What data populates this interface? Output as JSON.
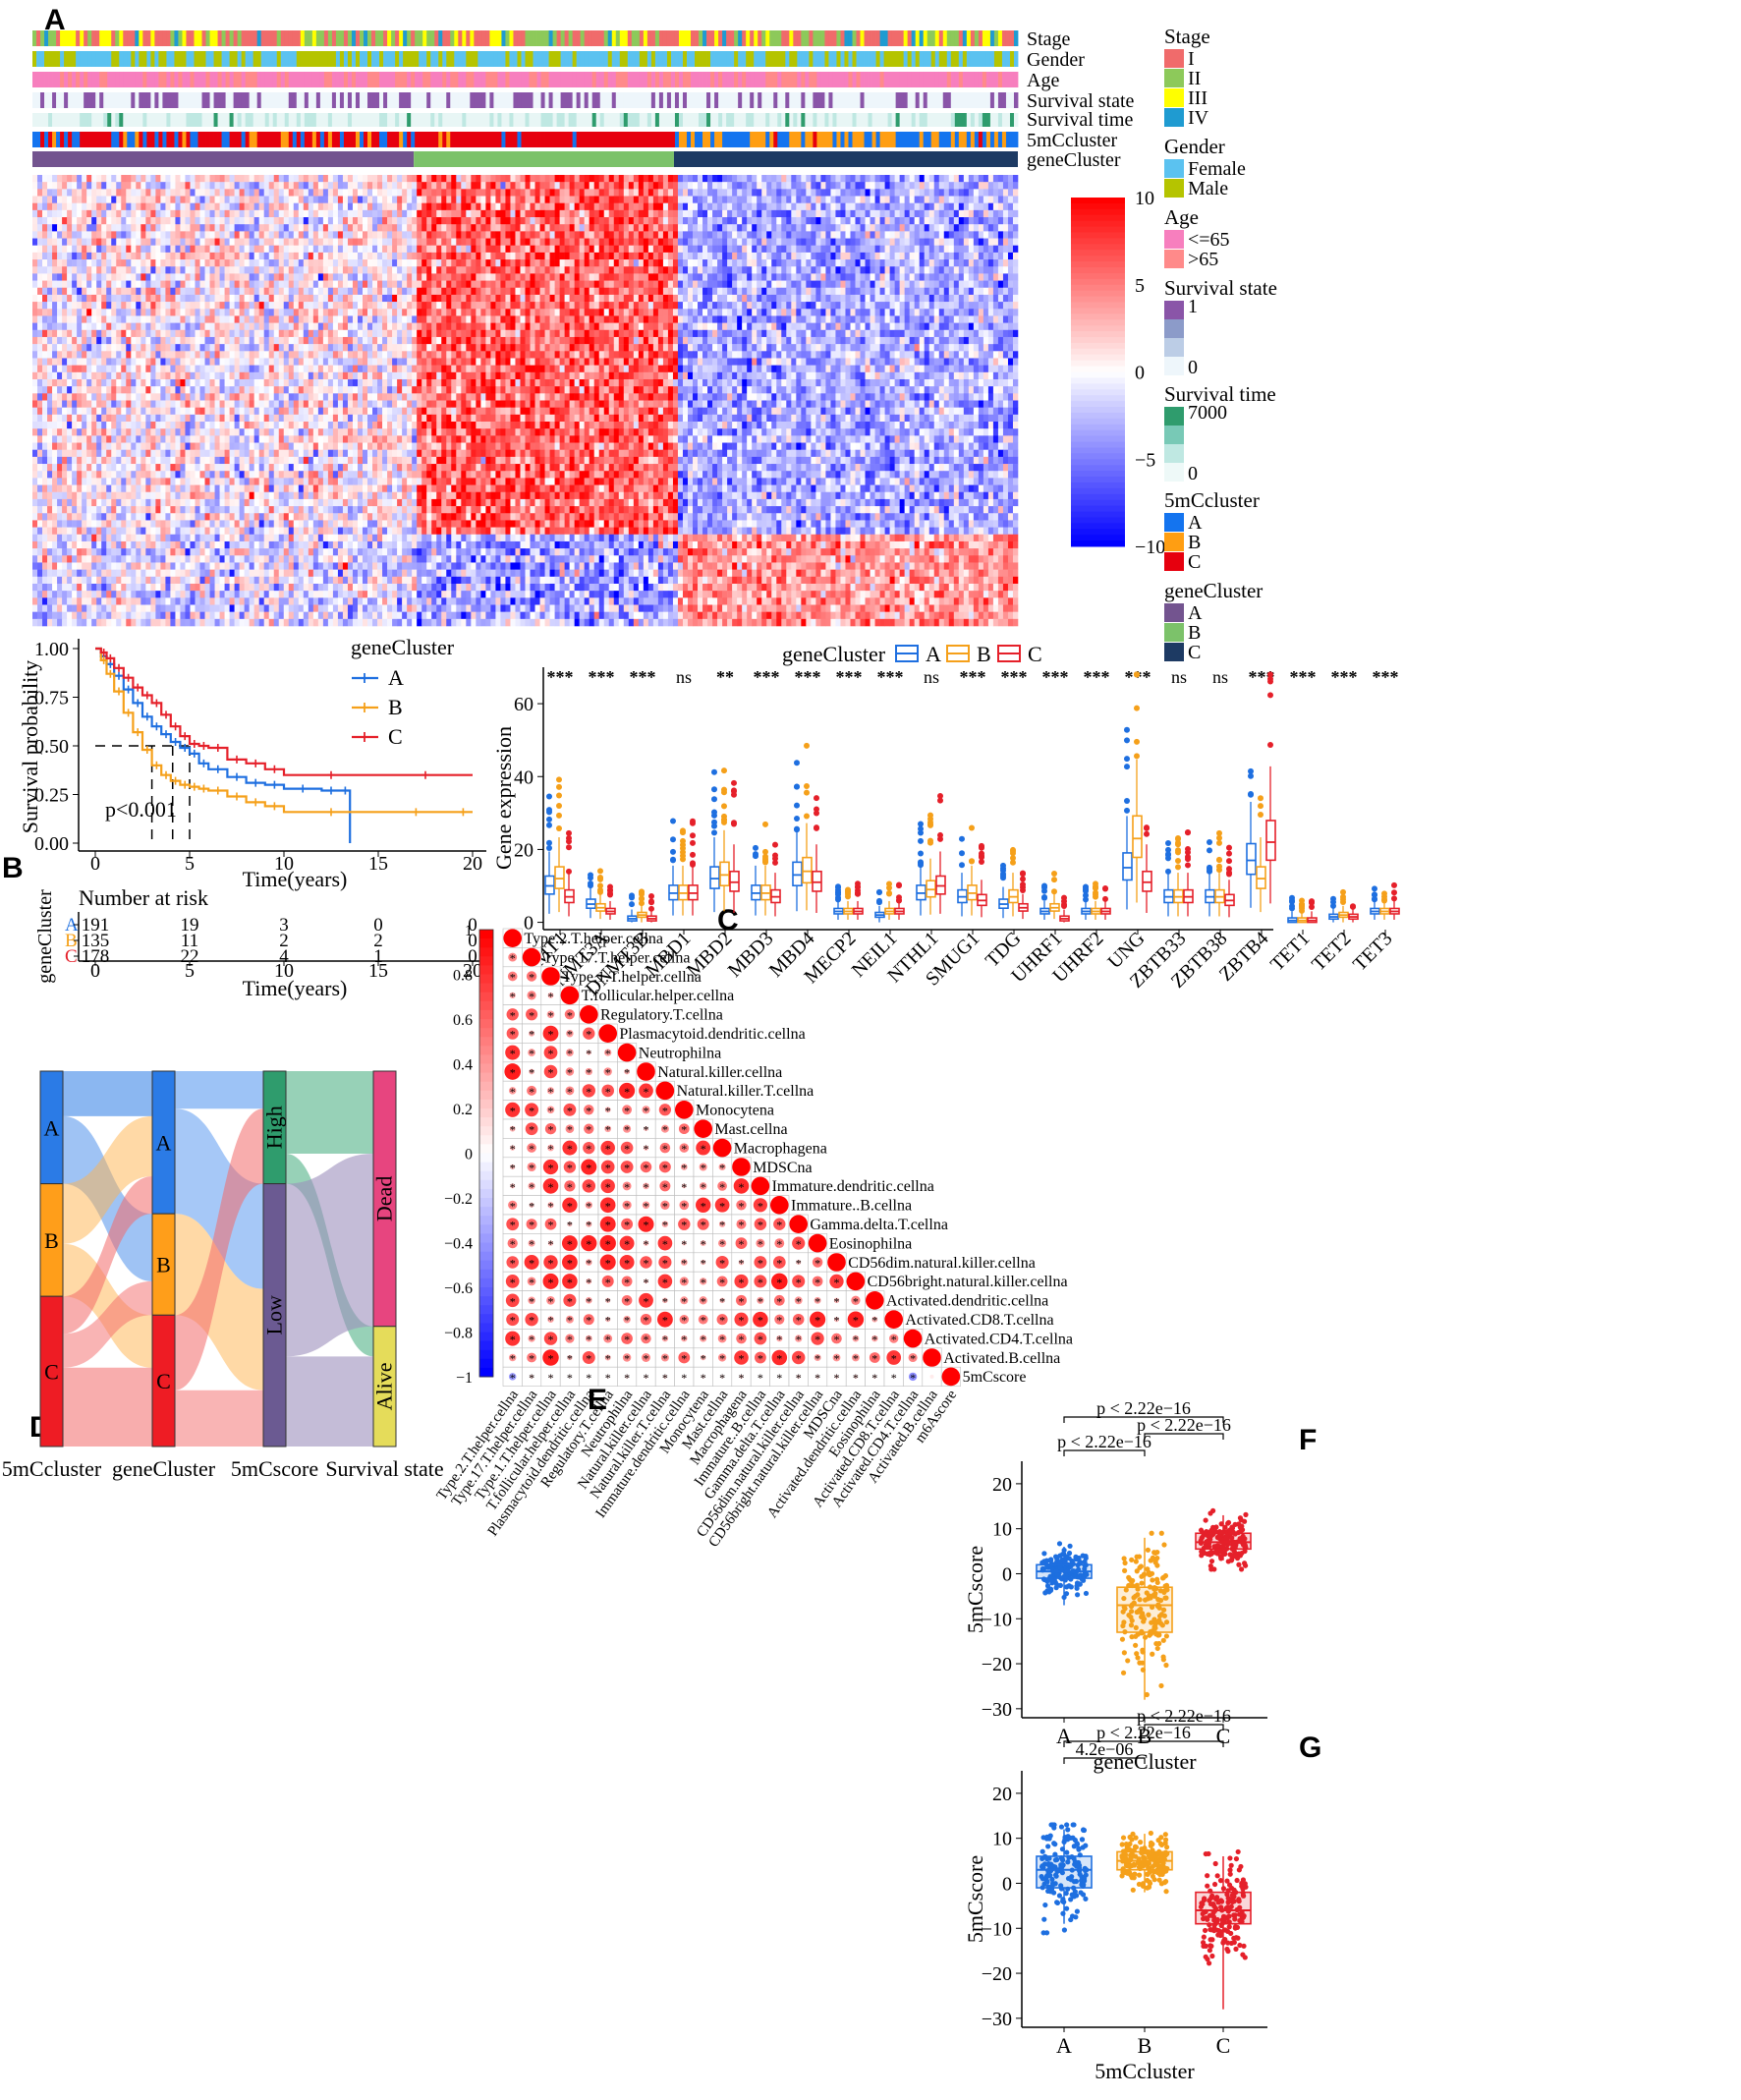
{
  "figure": {
    "panel_labels": [
      "A",
      "B",
      "C",
      "D",
      "E",
      "F",
      "G"
    ]
  },
  "chart_data": [
    {
      "panel": "A",
      "type": "heatmap",
      "annotation_tracks": [
        "Stage",
        "Gender",
        "Age",
        "Survival state",
        "Survival time",
        "5mCcluster",
        "geneCluster"
      ],
      "colorbar": {
        "ticks": [
          10,
          5,
          0,
          -5,
          -10
        ],
        "range": [
          -10,
          10
        ],
        "colors": [
          "#0000ff",
          "#ffffff",
          "#ff0000"
        ]
      },
      "cluster_blocks": [
        {
          "name": "A",
          "fraction": 0.387,
          "color": "#73548f"
        },
        {
          "name": "B",
          "fraction": 0.264,
          "color": "#7cc26a"
        },
        {
          "name": "C",
          "fraction": 0.349,
          "color": "#1d3a63"
        }
      ],
      "legends": [
        {
          "title": "Stage",
          "items": [
            {
              "label": "I",
              "color": "#f06b6b"
            },
            {
              "label": "II",
              "color": "#8dc95a"
            },
            {
              "label": "III",
              "color": "#ffff00"
            },
            {
              "label": "IV",
              "color": "#1f9bd1"
            }
          ]
        },
        {
          "title": "Gender",
          "items": [
            {
              "label": "Female",
              "color": "#5bc2f0"
            },
            {
              "label": "Male",
              "color": "#b5c400"
            }
          ]
        },
        {
          "title": "Age",
          "items": [
            {
              "label": "<=65",
              "color": "#f77fbe"
            },
            {
              "label": ">65",
              "color": "#ff8a8a"
            }
          ]
        },
        {
          "title": "Survival state",
          "gradient": [
            "#8a55a8",
            "#8c9bc9",
            "#bccde6",
            "#eef6fb"
          ],
          "ticks": [
            "1",
            "0"
          ]
        },
        {
          "title": "Survival time",
          "gradient": [
            "#2f9c6d",
            "#78c9b6",
            "#bfe8e2",
            "#eef9f8"
          ],
          "ticks": [
            "7000",
            "0"
          ]
        },
        {
          "title": "5mCcluster",
          "items": [
            {
              "label": "A",
              "color": "#1474ef"
            },
            {
              "label": "B",
              "color": "#ff9e12"
            },
            {
              "label": "C",
              "color": "#e6000e"
            }
          ]
        },
        {
          "title": "geneCluster",
          "items": [
            {
              "label": "A",
              "color": "#73548f"
            },
            {
              "label": "B",
              "color": "#7cc26a"
            },
            {
              "label": "C",
              "color": "#1d3a63"
            }
          ]
        }
      ]
    },
    {
      "panel": "B",
      "type": "line",
      "ylabel": "Survival probability",
      "xlabel": "Time(years)",
      "xlim": [
        0,
        20
      ],
      "ylim": [
        0,
        1
      ],
      "yticks": [
        "0.00",
        "0.25",
        "0.50",
        "0.75",
        "1.00"
      ],
      "xticks": [
        0,
        5,
        10,
        15,
        20
      ],
      "legend_title": "geneCluster",
      "annotation": "p<0.001",
      "series": [
        {
          "name": "A",
          "color": "#1e6fe0",
          "x": [
            0,
            0.3,
            0.6,
            1.0,
            1.5,
            2.0,
            2.5,
            3.0,
            3.5,
            4.0,
            4.5,
            5.0,
            5.5,
            6.0,
            7.0,
            8.0,
            9.0,
            10.0,
            12.0,
            13.0,
            13.5
          ],
          "y": [
            1.0,
            0.96,
            0.92,
            0.86,
            0.79,
            0.72,
            0.65,
            0.6,
            0.56,
            0.52,
            0.49,
            0.46,
            0.41,
            0.38,
            0.34,
            0.31,
            0.3,
            0.28,
            0.27,
            0.27,
            0.0
          ]
        },
        {
          "name": "B",
          "color": "#f5a01a",
          "x": [
            0,
            0.3,
            0.6,
            1.0,
            1.5,
            2.0,
            2.5,
            3.0,
            3.5,
            4.0,
            4.5,
            5.0,
            5.5,
            6.0,
            7.0,
            8.0,
            9.0,
            10.0,
            15.0,
            19.0,
            20.0
          ],
          "y": [
            1.0,
            0.94,
            0.87,
            0.78,
            0.67,
            0.57,
            0.48,
            0.4,
            0.35,
            0.32,
            0.3,
            0.29,
            0.28,
            0.27,
            0.24,
            0.21,
            0.19,
            0.16,
            0.16,
            0.16,
            0.16
          ]
        },
        {
          "name": "C",
          "color": "#e5202a",
          "x": [
            0,
            0.3,
            0.6,
            1.0,
            1.5,
            2.0,
            2.5,
            3.0,
            3.5,
            4.0,
            4.5,
            5.0,
            5.5,
            6.0,
            7.0,
            8.0,
            9.0,
            10.0,
            15.0,
            20.0
          ],
          "y": [
            1.0,
            0.98,
            0.95,
            0.9,
            0.85,
            0.8,
            0.76,
            0.72,
            0.66,
            0.6,
            0.55,
            0.51,
            0.5,
            0.49,
            0.43,
            0.41,
            0.38,
            0.35,
            0.35,
            0.35
          ]
        }
      ],
      "risk_table": {
        "title": "Number at risk",
        "ylabel": "geneCluster",
        "xlabel": "Time(years)",
        "times": [
          0,
          5,
          10,
          15,
          20
        ],
        "rows": [
          {
            "name": "A",
            "color": "#1e6fe0",
            "values": [
              191,
              19,
              3,
              0,
              0
            ]
          },
          {
            "name": "B",
            "color": "#f5a01a",
            "values": [
              135,
              11,
              2,
              2,
              0
            ]
          },
          {
            "name": "C",
            "color": "#e5202a",
            "values": [
              178,
              22,
              4,
              1,
              0
            ]
          }
        ]
      }
    },
    {
      "panel": "C",
      "type": "box",
      "ylabel": "Gene expression",
      "ylim": [
        -2,
        70
      ],
      "yticks": [
        0,
        20,
        40,
        60
      ],
      "legend_title": "geneCluster",
      "series": [
        {
          "name": "A",
          "color": "#1e6fe0"
        },
        {
          "name": "B",
          "color": "#f5a01a"
        },
        {
          "name": "C",
          "color": "#e5202a"
        }
      ],
      "categories": [
        "DNMT1",
        "DNMT3A",
        "DNMT3B",
        "MBD1",
        "MBD2",
        "MBD3",
        "MBD4",
        "MECP2",
        "NEIL1",
        "NTHL1",
        "SMUG1",
        "TDG",
        "UHRF1",
        "UHRF2",
        "UNG",
        "ZBTB33",
        "ZBTB38",
        "ZBTB4",
        "TET1",
        "TET2",
        "TET3"
      ],
      "significance": [
        "***",
        "***",
        "***",
        "ns",
        "**",
        "***",
        "***",
        "***",
        "***",
        "ns",
        "***",
        "***",
        "***",
        "***",
        "***",
        "ns",
        "ns",
        "***",
        "***",
        "***",
        "***"
      ],
      "medians": [
        [
          10,
          12,
          7
        ],
        [
          5,
          4,
          3
        ],
        [
          1,
          2,
          1
        ],
        [
          8,
          8,
          8
        ],
        [
          12,
          13,
          11
        ],
        [
          8,
          8,
          7
        ],
        [
          13,
          14,
          11
        ],
        [
          3,
          3,
          3
        ],
        [
          2,
          3,
          3
        ],
        [
          8,
          9,
          10
        ],
        [
          7,
          8,
          6
        ],
        [
          5,
          7,
          4
        ],
        [
          3,
          4,
          1
        ],
        [
          3,
          3,
          3
        ],
        [
          15,
          23,
          11
        ],
        [
          7,
          7,
          7
        ],
        [
          7,
          7,
          6
        ],
        [
          17,
          12,
          22
        ],
        [
          0.5,
          0.5,
          0.5
        ],
        [
          1.5,
          2,
          1.5
        ],
        [
          3,
          3,
          3
        ]
      ]
    },
    {
      "panel": "D",
      "type": "alluvial",
      "axes": [
        "5mCcluster",
        "geneCluster",
        "5mCscore",
        "Survival state"
      ],
      "strata": [
        [
          {
            "label": "A",
            "value": 0.3,
            "color": "#2b7be6"
          },
          {
            "label": "B",
            "value": 0.3,
            "color": "#ff9e1a"
          },
          {
            "label": "C",
            "value": 0.4,
            "color": "#ee1c24"
          }
        ],
        [
          {
            "label": "A",
            "value": 0.38,
            "color": "#2b7be6"
          },
          {
            "label": "B",
            "value": 0.27,
            "color": "#ff9e1a"
          },
          {
            "label": "C",
            "value": 0.35,
            "color": "#ee1c24"
          }
        ],
        [
          {
            "label": "High",
            "value": 0.3,
            "color": "#2f9c6d"
          },
          {
            "label": "Low",
            "value": 0.7,
            "color": "#6b5a92"
          }
        ],
        [
          {
            "label": "Dead",
            "value": 0.68,
            "color": "#e7457f"
          },
          {
            "label": "Alive",
            "value": 0.32,
            "color": "#e5dc5a"
          }
        ]
      ]
    },
    {
      "panel": "E",
      "type": "heatmap",
      "subtype": "correlation",
      "colorbar_ticks": [
        "1",
        "0.8",
        "0.6",
        "0.4",
        "0.2",
        "0",
        "-0.2",
        "-0.4",
        "-0.6",
        "-0.8",
        "-1"
      ],
      "labels": [
        "Type.2.T.helper.cellna",
        "Type.17.T.helper.cellna",
        "Type.1.T.helper.cellna",
        "T.follicular.helper.cellna",
        "Regulatory.T.cellna",
        "Plasmacytoid.dendritic.cellna",
        "Neutrophilna",
        "Natural.killer.cellna",
        "Natural.killer.T.cellna",
        "Monocytena",
        "Mast.cellna",
        "Macrophagena",
        "MDSCna",
        "Immature.dendritic.cellna",
        "Immature..B.cellna",
        "Gamma.delta.T.cellna",
        "Eosinophilna",
        "CD56dim.natural.killer.cellna",
        "CD56bright.natural.killer.cellna",
        "Activated.dendritic.cellna",
        "Activated.CD8.T.cellna",
        "Activated.CD4.T.cellna",
        "Activated.B.cellna",
        "5mCscore"
      ],
      "bottom_labels": [
        "Type.2.T.helper.cellna",
        "Type.17.T.helper.cellna",
        "Type.1.T.helper.cellna",
        "T.follicular.helper.cellna",
        "Plasmacytoid.dendritic.cellna",
        "Regulatory.T.cellna",
        "Neutrophilna",
        "Natural.killer.cellna",
        "Natural.killer.T.cellna",
        "Immature.dendritic.cellna",
        "Monocytena",
        "Mast.cellna",
        "Macrophagena",
        "Immature..B.cellna",
        "Gamma.delta.T.cellna",
        "CD56dim.natural.killer.cellna",
        "CD56bright.natural.killer.cellna",
        "MDSCna",
        "Activated.dendritic.cellna",
        "Eosinophilna",
        "Activated.CD8.T.cellna",
        "Activated.CD4.T.cellna",
        "Activated.B.cellna",
        "m6Ascore"
      ]
    },
    {
      "panel": "F",
      "type": "box",
      "ylabel": "5mCscore",
      "xlabel": "geneCluster",
      "ylim": [
        -32,
        25
      ],
      "yticks": [
        20,
        10,
        0,
        -10,
        -20,
        -30
      ],
      "categories": [
        "A",
        "B",
        "C"
      ],
      "colors": [
        "#1e6fe0",
        "#f5a01a",
        "#e5202a"
      ],
      "box_stats": [
        [
          -7,
          -1,
          0.5,
          2,
          6
        ],
        [
          -28,
          -13,
          -7,
          -3,
          8
        ],
        [
          3,
          5.5,
          7,
          9,
          13
        ]
      ],
      "comparisons": [
        {
          "pair": [
            "A",
            "C"
          ],
          "label": "p < 2.22e−16"
        },
        {
          "pair": [
            "B",
            "C"
          ],
          "label": "p < 2.22e−16"
        },
        {
          "pair": [
            "A",
            "B"
          ],
          "label": "p < 2.22e−16"
        }
      ]
    },
    {
      "panel": "G",
      "type": "box",
      "ylabel": "5mCscore",
      "xlabel": "5mCcluster",
      "ylim": [
        -32,
        25
      ],
      "yticks": [
        20,
        10,
        0,
        -10,
        -20,
        -30
      ],
      "categories": [
        "A",
        "B",
        "C"
      ],
      "colors": [
        "#1e6fe0",
        "#f5a01a",
        "#e5202a"
      ],
      "box_stats": [
        [
          -9,
          -1,
          3,
          6,
          12
        ],
        [
          -2,
          3,
          5,
          7,
          11
        ],
        [
          -28,
          -9,
          -6,
          -2,
          6
        ]
      ],
      "comparisons": [
        {
          "pair": [
            "B",
            "C"
          ],
          "label": "p < 2.22e−16"
        },
        {
          "pair": [
            "A",
            "C"
          ],
          "label": "p < 2.22e−16"
        },
        {
          "pair": [
            "A",
            "B"
          ],
          "label": "4.2e−06"
        }
      ]
    }
  ]
}
